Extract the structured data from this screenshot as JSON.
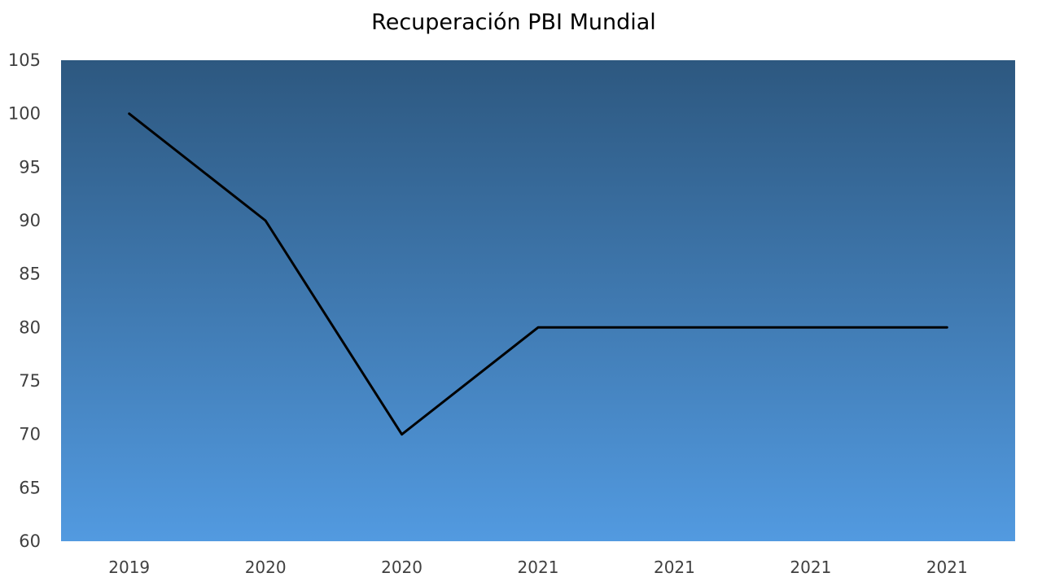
{
  "chart_data": {
    "type": "line",
    "title": "Recuperación PBI Mundial",
    "xlabel": "",
    "ylabel": "",
    "categories": [
      "2019",
      "2020",
      "2020",
      "2021",
      "2021",
      "2021",
      "2021"
    ],
    "series": [
      {
        "values": [
          100,
          90,
          70,
          80,
          80,
          80,
          80
        ]
      }
    ],
    "ylim": [
      60,
      105
    ],
    "yticks": [
      60,
      65,
      70,
      75,
      80,
      85,
      90,
      95,
      100,
      105
    ],
    "grid": false,
    "legend": "none",
    "colors": {
      "plot_gradient_top": "#2d5880",
      "plot_gradient_bottom": "#529ae0",
      "line": "#000000",
      "tick_text": "#404040"
    }
  }
}
